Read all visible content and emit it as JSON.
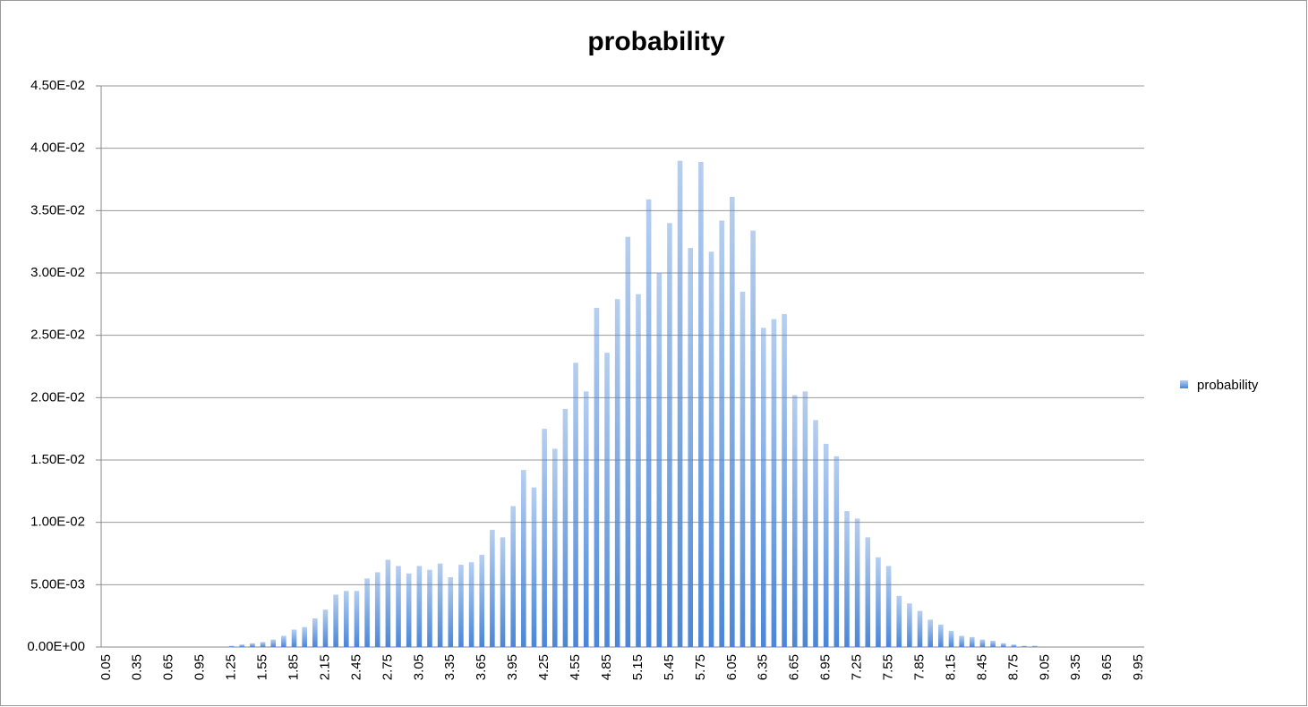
{
  "chart_data": {
    "type": "bar",
    "title": "probability",
    "categories": [
      "0.05",
      null,
      null,
      "0.35",
      null,
      null,
      "0.65",
      null,
      null,
      "0.95",
      null,
      null,
      "1.25",
      null,
      null,
      "1.55",
      null,
      null,
      "1.85",
      null,
      null,
      "2.15",
      null,
      null,
      "2.45",
      null,
      null,
      "2.75",
      null,
      null,
      "3.05",
      null,
      null,
      "3.35",
      null,
      null,
      "3.65",
      null,
      null,
      "3.95",
      null,
      null,
      "4.25",
      null,
      null,
      "4.55",
      null,
      null,
      "4.85",
      null,
      null,
      "5.15",
      null,
      null,
      "5.45",
      null,
      null,
      "5.75",
      null,
      null,
      "6.05",
      null,
      null,
      "6.35",
      null,
      null,
      "6.65",
      null,
      null,
      "6.95",
      null,
      null,
      "7.25",
      null,
      null,
      "7.55",
      null,
      null,
      "7.85",
      null,
      null,
      "8.15",
      null,
      null,
      "8.45",
      null,
      null,
      "8.75",
      null,
      null,
      "9.05",
      null,
      null,
      "9.35",
      null,
      null,
      "9.65",
      null,
      null,
      "9.95"
    ],
    "series": [
      {
        "name": "probability",
        "color": "#4a86d8",
        "values": [
          0,
          0,
          0,
          0,
          0,
          0,
          0,
          0,
          0,
          0,
          0,
          0,
          0.0001,
          0.0002,
          0.0003,
          0.0004,
          0.0006,
          0.0009,
          0.0014,
          0.0016,
          0.0023,
          0.003,
          0.0042,
          0.0045,
          0.0045,
          0.0055,
          0.006,
          0.007,
          0.0065,
          0.0059,
          0.0065,
          0.0062,
          0.0067,
          0.0056,
          0.0066,
          0.0068,
          0.0074,
          0.0094,
          0.0088,
          0.0113,
          0.0142,
          0.0128,
          0.0175,
          0.0159,
          0.0191,
          0.0228,
          0.0205,
          0.0272,
          0.0236,
          0.0279,
          0.0329,
          0.0283,
          0.0359,
          0.03,
          0.034,
          0.039,
          0.032,
          0.0389,
          0.0317,
          0.0342,
          0.0361,
          0.0285,
          0.0334,
          0.0256,
          0.0263,
          0.0267,
          0.0202,
          0.0205,
          0.0182,
          0.0163,
          0.0153,
          0.0109,
          0.0103,
          0.0088,
          0.0072,
          0.0065,
          0.0041,
          0.0035,
          0.0029,
          0.0022,
          0.0018,
          0.0013,
          0.0009,
          0.0008,
          0.0006,
          0.0005,
          0.0003,
          0.0002,
          0.0001,
          0.0001,
          0,
          0,
          0,
          0,
          0,
          0,
          0,
          0,
          0,
          0
        ]
      }
    ],
    "ylim": [
      0,
      0.045
    ],
    "yticks": [
      {
        "value": 0,
        "label": "0.00E+00"
      },
      {
        "value": 0.005,
        "label": "5.00E-03"
      },
      {
        "value": 0.01,
        "label": "1.00E-02"
      },
      {
        "value": 0.015,
        "label": "1.50E-02"
      },
      {
        "value": 0.02,
        "label": "2.00E-02"
      },
      {
        "value": 0.025,
        "label": "2.50E-02"
      },
      {
        "value": 0.03,
        "label": "3.00E-02"
      },
      {
        "value": 0.035,
        "label": "3.50E-02"
      },
      {
        "value": 0.04,
        "label": "4.00E-02"
      },
      {
        "value": 0.045,
        "label": "4.50E-02"
      }
    ],
    "grid": true,
    "legend": "right"
  }
}
